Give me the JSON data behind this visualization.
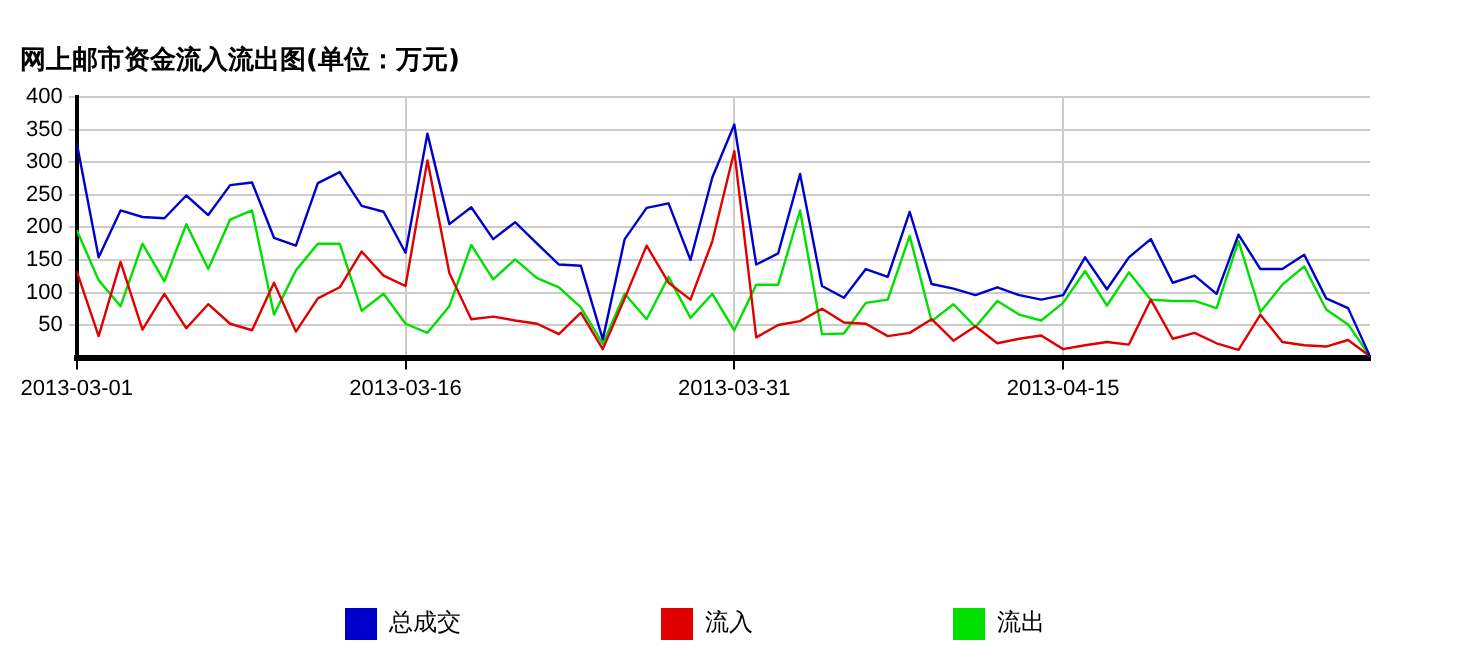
{
  "chart_data": {
    "type": "line",
    "title": "网上邮市资金流入流出图(单位：万元)",
    "x": [
      "2013-03-01",
      "2013-03-02",
      "2013-03-03",
      "2013-03-04",
      "2013-03-05",
      "2013-03-06",
      "2013-03-07",
      "2013-03-08",
      "2013-03-09",
      "2013-03-10",
      "2013-03-11",
      "2013-03-12",
      "2013-03-13",
      "2013-03-14",
      "2013-03-15",
      "2013-03-16",
      "2013-03-17",
      "2013-03-18",
      "2013-03-19",
      "2013-03-20",
      "2013-03-21",
      "2013-03-22",
      "2013-03-23",
      "2013-03-24",
      "2013-03-25",
      "2013-03-26",
      "2013-03-27",
      "2013-03-28",
      "2013-03-29",
      "2013-03-30",
      "2013-03-31",
      "2013-04-01",
      "2013-04-02",
      "2013-04-03",
      "2013-04-04",
      "2013-04-05",
      "2013-04-06",
      "2013-04-07",
      "2013-04-08",
      "2013-04-09",
      "2013-04-10",
      "2013-04-11",
      "2013-04-12",
      "2013-04-13",
      "2013-04-14",
      "2013-04-15",
      "2013-04-16",
      "2013-04-17",
      "2013-04-18",
      "2013-04-19",
      "2013-04-20",
      "2013-04-21",
      "2013-04-22",
      "2013-04-23",
      "2013-04-24",
      "2013-04-25",
      "2013-04-26",
      "2013-04-27",
      "2013-04-28",
      "2013-04-29"
    ],
    "series": [
      {
        "name": "总成交",
        "color": "#0000cc",
        "values": [
          330,
          154,
          226,
          216,
          214,
          249,
          219,
          265,
          269,
          184,
          172,
          268,
          285,
          233,
          224,
          161,
          344,
          205,
          231,
          182,
          208,
          175,
          143,
          141,
          28,
          182,
          230,
          237,
          150,
          277,
          358,
          143,
          160,
          282,
          110,
          92,
          136,
          124,
          224,
          113,
          106,
          96,
          108,
          96,
          89,
          96,
          154,
          105,
          154,
          182,
          115,
          126,
          98,
          189,
          136,
          136,
          158,
          91,
          76,
          2
        ]
      },
      {
        "name": "流入",
        "color": "#e00000",
        "values": [
          133,
          33,
          147,
          43,
          98,
          45,
          82,
          52,
          42,
          115,
          40,
          91,
          108,
          163,
          126,
          110,
          303,
          130,
          59,
          63,
          57,
          52,
          36,
          69,
          13,
          91,
          172,
          115,
          89,
          179,
          317,
          31,
          50,
          56,
          75,
          54,
          52,
          33,
          38,
          59,
          26,
          48,
          22,
          29,
          34,
          13,
          19,
          24,
          20,
          89,
          29,
          38,
          22,
          12,
          66,
          24,
          19,
          17,
          27,
          2
        ]
      },
      {
        "name": "流出",
        "color": "#00e000",
        "values": [
          196,
          119,
          79,
          175,
          117,
          205,
          136,
          212,
          226,
          66,
          134,
          175,
          175,
          72,
          98,
          52,
          38,
          79,
          173,
          120,
          151,
          122,
          108,
          77,
          21,
          98,
          59,
          124,
          61,
          98,
          42,
          112,
          112,
          226,
          36,
          37,
          84,
          89,
          187,
          56,
          82,
          47,
          87,
          66,
          57,
          84,
          133,
          80,
          131,
          89,
          87,
          87,
          76,
          179,
          70,
          112,
          140,
          74,
          51,
          2
        ]
      }
    ],
    "xlim": [
      "2013-03-01",
      "2013-04-29"
    ],
    "xticks": [
      "2013-03-01",
      "2013-03-16",
      "2013-03-31",
      "2013-04-15"
    ],
    "ylim": [
      0,
      400
    ],
    "yticks": [
      50,
      100,
      150,
      200,
      250,
      300,
      350,
      400
    ],
    "grid": true,
    "legend": "bottom",
    "marker": "none",
    "line_style": "solid"
  }
}
